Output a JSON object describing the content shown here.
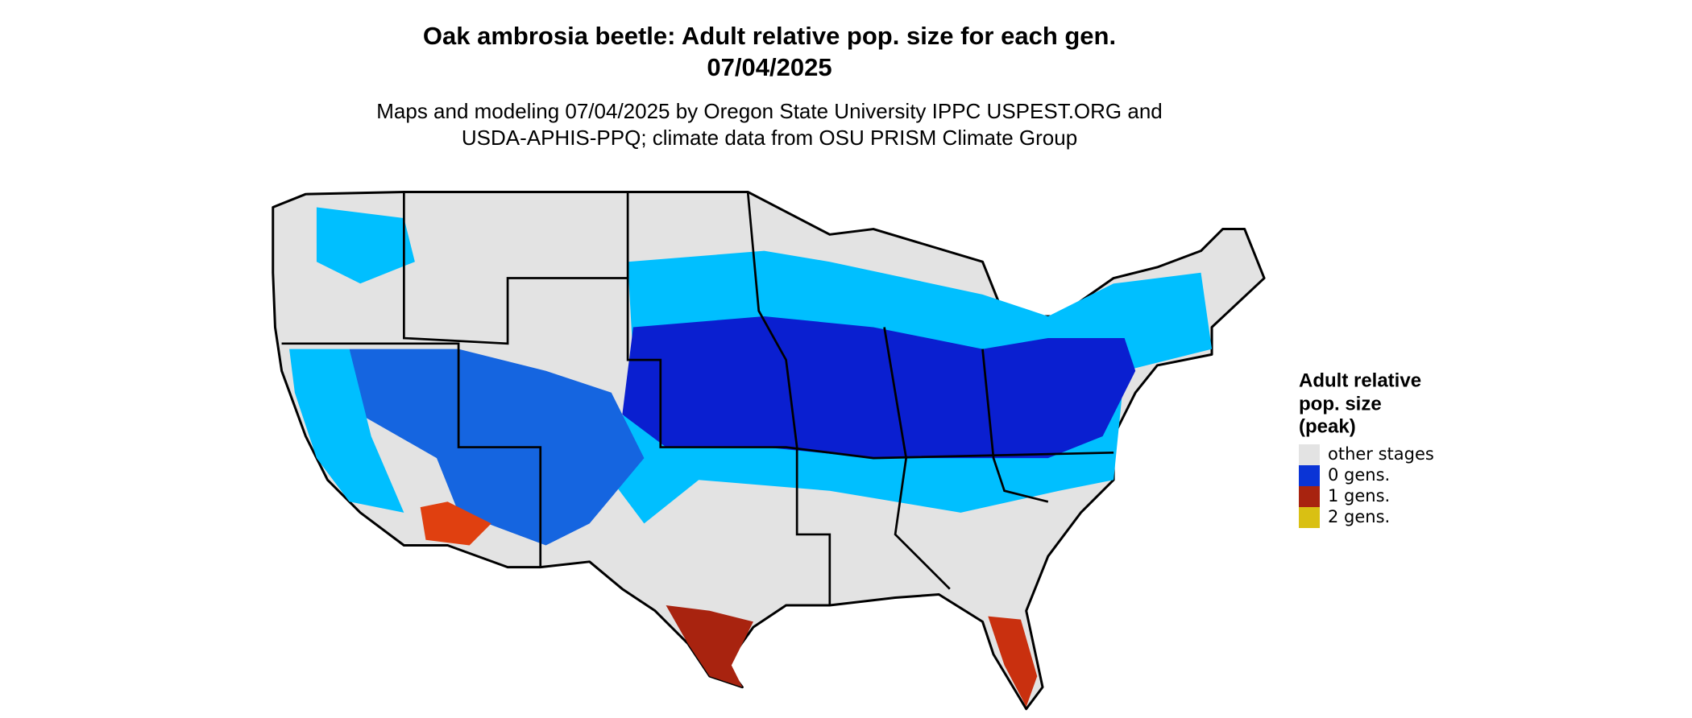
{
  "title": "Oak ambrosia beetle: Adult relative pop. size for each gen.",
  "date": "07/04/2025",
  "subtitle": [
    "Maps and modeling 07/04/2025 by Oregon State University IPPC USPEST.ORG and",
    "USDA-APHIS-PPQ; climate data from OSU PRISM Climate Group"
  ],
  "legend": {
    "title": [
      "Adult relative",
      "pop. size",
      "(peak)"
    ],
    "items": [
      {
        "label": "other stages",
        "color": "#e3e3e3"
      },
      {
        "label": "0 gens.",
        "color": "#0a34d6"
      },
      {
        "label": "1 gens.",
        "color": "#a8230f"
      },
      {
        "label": "2 gens.",
        "color": "#d9c013"
      }
    ]
  }
}
